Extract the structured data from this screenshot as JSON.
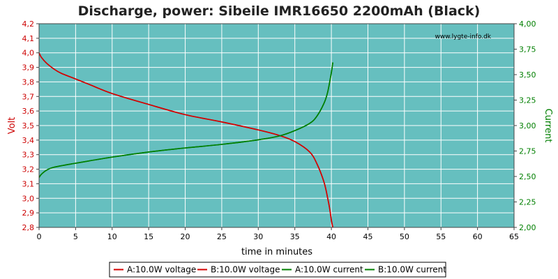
{
  "chart_data": {
    "type": "line",
    "title": "Discharge, power: Sibeile IMR16650 2200mAh (Black)",
    "watermark": "www.lygte-info.dk",
    "xlabel": "time in minutes",
    "ylabel_left": "Volt",
    "ylabel_right": "Current",
    "xlim": [
      0,
      65
    ],
    "ylim_left": [
      2.8,
      4.2
    ],
    "ylim_right": [
      2.0,
      4.0
    ],
    "x_ticks": [
      "0",
      "5",
      "10",
      "15",
      "20",
      "25",
      "30",
      "35",
      "40",
      "45",
      "50",
      "55",
      "60",
      "65"
    ],
    "y_left_ticks": [
      "2,8",
      "2,9",
      "3,0",
      "3,1",
      "3,2",
      "3,3",
      "3,4",
      "3,5",
      "3,6",
      "3,7",
      "3,8",
      "3,9",
      "4,0",
      "4,1",
      "4,2"
    ],
    "y_right_ticks": [
      "2,00",
      "2,25",
      "2,50",
      "2,75",
      "3,00",
      "3,25",
      "3,50",
      "3,75",
      "4,00"
    ],
    "grid": true,
    "legend_position": "bottom",
    "colors": {
      "background": "#66bfbf",
      "grid": "#ffffff",
      "voltage": "#d40000",
      "current": "#007f00",
      "left_axis": "#cc0000",
      "right_axis": "#007f00"
    },
    "series": [
      {
        "name": "A:10.0W voltage",
        "axis": "left",
        "color": "#d40000",
        "x": [
          0,
          0.3,
          1,
          2,
          3,
          5,
          7,
          10,
          15,
          20,
          25,
          30,
          33,
          35,
          37,
          38,
          39,
          39.5,
          39.8,
          40.0,
          40.2
        ],
        "y": [
          4.0,
          3.97,
          3.93,
          3.89,
          3.86,
          3.82,
          3.78,
          3.72,
          3.645,
          3.575,
          3.525,
          3.47,
          3.43,
          3.39,
          3.32,
          3.24,
          3.11,
          3.0,
          2.92,
          2.85,
          2.8
        ]
      },
      {
        "name": "B:10.0W voltage",
        "axis": "left",
        "color": "#d40000",
        "x": [
          0,
          0.3,
          1,
          2,
          3,
          5,
          7,
          10,
          15,
          20,
          25,
          30,
          33,
          35,
          37,
          38,
          39,
          39.5,
          39.8,
          40.0,
          40.2
        ],
        "y": [
          4.0,
          3.97,
          3.93,
          3.89,
          3.86,
          3.82,
          3.78,
          3.72,
          3.645,
          3.575,
          3.525,
          3.47,
          3.43,
          3.39,
          3.32,
          3.24,
          3.11,
          3.0,
          2.92,
          2.85,
          2.8
        ]
      },
      {
        "name": "A:10.0W current",
        "axis": "right",
        "color": "#007f00",
        "x": [
          0,
          0.3,
          1,
          2,
          5,
          10,
          15,
          20,
          25,
          30,
          33,
          35,
          37,
          38,
          39,
          39.5,
          40.0,
          40.2
        ],
        "y": [
          2.49,
          2.52,
          2.56,
          2.59,
          2.63,
          2.69,
          2.74,
          2.78,
          2.815,
          2.86,
          2.9,
          2.95,
          3.02,
          3.09,
          3.22,
          3.33,
          3.52,
          3.62
        ]
      },
      {
        "name": "B:10.0W current",
        "axis": "right",
        "color": "#007f00",
        "x": [
          0,
          0.3,
          1,
          2,
          5,
          10,
          15,
          20,
          25,
          30,
          33,
          35,
          37,
          38,
          39,
          39.5,
          40.0,
          40.2
        ],
        "y": [
          2.49,
          2.52,
          2.56,
          2.59,
          2.63,
          2.69,
          2.74,
          2.78,
          2.815,
          2.86,
          2.9,
          2.95,
          3.02,
          3.09,
          3.22,
          3.33,
          3.52,
          3.62
        ]
      }
    ]
  }
}
